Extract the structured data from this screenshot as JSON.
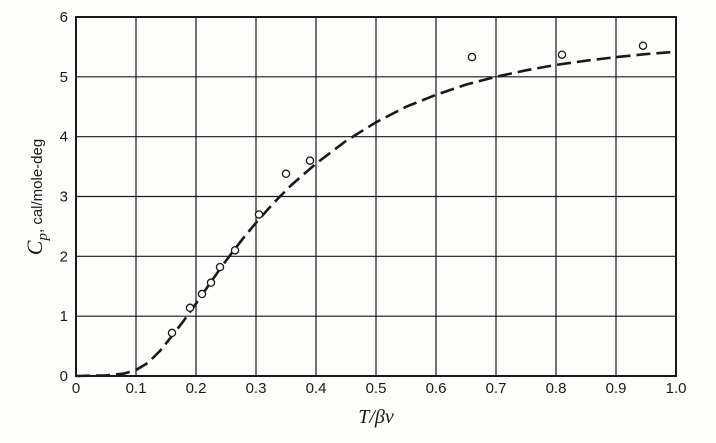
{
  "chart_data": {
    "type": "scatter",
    "title": "",
    "xlabel": "T/βν",
    "ylabel_symbol": "C",
    "ylabel_subscript": "p",
    "ylabel_rest": ", cal/mole-deg",
    "xlim": [
      0,
      1.0
    ],
    "ylim": [
      0,
      6
    ],
    "x_ticks": [
      "0",
      "0.1",
      "0.2",
      "0.3",
      "0.4",
      "0.5",
      "0.6",
      "0.7",
      "0.8",
      "0.9",
      "1.0"
    ],
    "y_ticks": [
      "0",
      "1",
      "2",
      "3",
      "4",
      "5",
      "6"
    ],
    "grid": true,
    "series": [
      {
        "style": "open-circle-markers",
        "x": [
          0.16,
          0.19,
          0.21,
          0.225,
          0.24,
          0.265,
          0.305,
          0.35,
          0.39,
          0.66,
          0.81,
          0.945
        ],
        "y": [
          0.72,
          1.14,
          1.37,
          1.56,
          1.82,
          2.1,
          2.7,
          3.38,
          3.6,
          5.33,
          5.37,
          5.52
        ]
      },
      {
        "style": "dashed-curve",
        "x": [
          0,
          0.05,
          0.08,
          0.1,
          0.12,
          0.14,
          0.16,
          0.18,
          0.2,
          0.22,
          0.24,
          0.26,
          0.28,
          0.3,
          0.33,
          0.36,
          0.4,
          0.45,
          0.5,
          0.55,
          0.6,
          0.65,
          0.7,
          0.75,
          0.8,
          0.85,
          0.9,
          0.95,
          1.0
        ],
        "y": [
          0,
          0.01,
          0.04,
          0.1,
          0.22,
          0.42,
          0.67,
          0.93,
          1.21,
          1.5,
          1.79,
          2.06,
          2.32,
          2.56,
          2.9,
          3.2,
          3.55,
          3.93,
          4.24,
          4.5,
          4.7,
          4.87,
          5.0,
          5.11,
          5.2,
          5.27,
          5.33,
          5.38,
          5.42
        ]
      }
    ]
  },
  "colors": {
    "ink": "#1a1a1a",
    "background": "#fdfdfb"
  }
}
